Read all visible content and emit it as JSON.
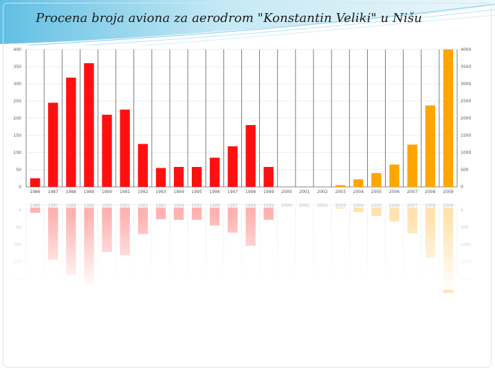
{
  "title": "Procena broja aviona za aerodrom \"Konstantin Veliki\" u Nišu",
  "colors": {
    "actual": "#ff1010",
    "forecast": "#ffa500",
    "accent": "#5fc3e6"
  },
  "chart_data": {
    "type": "bar",
    "title": "",
    "xlabel": "",
    "ylabel": "",
    "categories": [
      "1986",
      "1987",
      "1988",
      "1989",
      "1990",
      "1991",
      "1992",
      "1993",
      "1994",
      "1995",
      "1996",
      "1997",
      "1998",
      "1999",
      "2000",
      "2001",
      "2002",
      "2003",
      "2004",
      "2005",
      "2006",
      "2007",
      "2008",
      "2009"
    ],
    "series": [
      {
        "values": [
          25,
          245,
          318,
          360,
          210,
          225,
          125,
          55,
          58,
          58,
          85,
          118,
          180,
          58,
          0,
          0,
          0,
          0,
          0,
          0,
          0,
          0,
          0,
          0
        ],
        "color": "#ff1010",
        "axis": "left"
      },
      {
        "values": [
          0,
          0,
          0,
          0,
          0,
          0,
          0,
          0,
          0,
          0,
          0,
          0,
          0,
          0,
          0,
          0,
          0,
          50,
          220,
          400,
          650,
          1230,
          2370,
          4000
        ],
        "color": "#ffa500",
        "axis": "right"
      }
    ],
    "ylim_left": [
      0,
      400
    ],
    "yticks_left": [
      "0",
      "50",
      "100",
      "150",
      "200",
      "250",
      "300",
      "350",
      "400"
    ],
    "ylim_right": [
      0,
      4000
    ],
    "yticks_right": [
      "0",
      "500",
      "1000",
      "1500",
      "2000",
      "2500",
      "3000",
      "3500",
      "4000"
    ],
    "grid": true,
    "reflection": true
  }
}
